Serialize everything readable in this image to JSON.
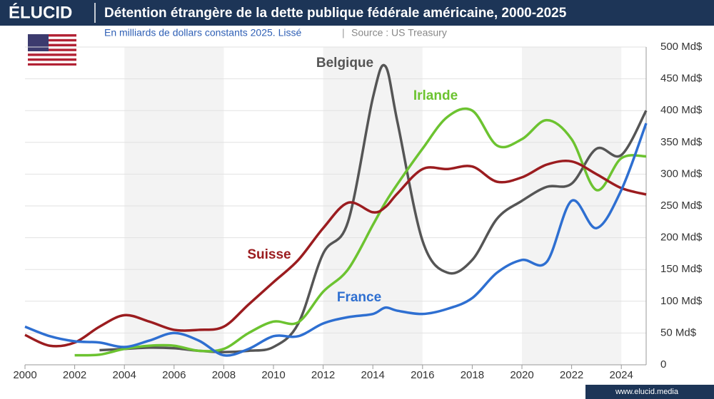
{
  "brand": "ÉLUCID",
  "footer": "www.elucid.media",
  "chart_data": {
    "type": "line",
    "title": "Détention étrangère de la dette publique fédérale américaine, 2000-2025",
    "subtitle": "En milliards de dollars constants 2025. Lissé",
    "source": "Source : US Treasury",
    "x": [
      2000,
      2001,
      2002,
      2003,
      2004,
      2005,
      2006,
      2007,
      2008,
      2009,
      2010,
      2011,
      2012,
      2013,
      2014,
      2014.5,
      2015,
      2016,
      2017,
      2018,
      2019,
      2020,
      2021,
      2022,
      2023,
      2024,
      2025
    ],
    "xlim": [
      2000,
      2025
    ],
    "xticks": [
      2000,
      2002,
      2004,
      2006,
      2008,
      2010,
      2012,
      2014,
      2016,
      2018,
      2020,
      2022,
      2024
    ],
    "ylim": [
      0,
      500
    ],
    "yticks": [
      0,
      {
        "value": 50,
        "label": "50 Md$"
      },
      {
        "value": 100,
        "label": "100 Md$"
      },
      {
        "value": 150,
        "label": "150 Md$"
      },
      {
        "value": 200,
        "label": "200 Md$"
      },
      {
        "value": 250,
        "label": "250 Md$"
      },
      {
        "value": 300,
        "label": "300 Md$"
      },
      {
        "value": 350,
        "label": "350 Md$"
      },
      {
        "value": 400,
        "label": "400 Md$"
      },
      {
        "value": 450,
        "label": "450 Md$"
      },
      {
        "value": 500,
        "label": "500 Md$"
      }
    ],
    "grid": true,
    "series": [
      {
        "name": "Belgique",
        "color": "#555555",
        "values": [
          null,
          null,
          null,
          23,
          25,
          27,
          26,
          22,
          20,
          22,
          28,
          65,
          175,
          225,
          420,
          470,
          380,
          195,
          145,
          165,
          230,
          258,
          280,
          285,
          340,
          330,
          400
        ]
      },
      {
        "name": "Irlande",
        "color": "#6cc330",
        "values": [
          null,
          null,
          15,
          16,
          25,
          30,
          30,
          22,
          25,
          50,
          68,
          67,
          115,
          150,
          220,
          255,
          285,
          340,
          390,
          400,
          345,
          355,
          385,
          355,
          275,
          325,
          328
        ]
      },
      {
        "name": "Suisse",
        "color": "#9b1c1f",
        "values": [
          47,
          30,
          35,
          60,
          78,
          68,
          55,
          55,
          60,
          95,
          130,
          165,
          215,
          255,
          240,
          248,
          270,
          308,
          308,
          312,
          288,
          295,
          315,
          320,
          300,
          278,
          268
        ]
      },
      {
        "name": "France",
        "color": "#2e6fd1",
        "values": [
          60,
          45,
          37,
          35,
          28,
          38,
          50,
          38,
          15,
          25,
          45,
          45,
          65,
          75,
          80,
          90,
          85,
          80,
          88,
          105,
          145,
          165,
          162,
          258,
          215,
          275,
          380
        ]
      }
    ]
  }
}
